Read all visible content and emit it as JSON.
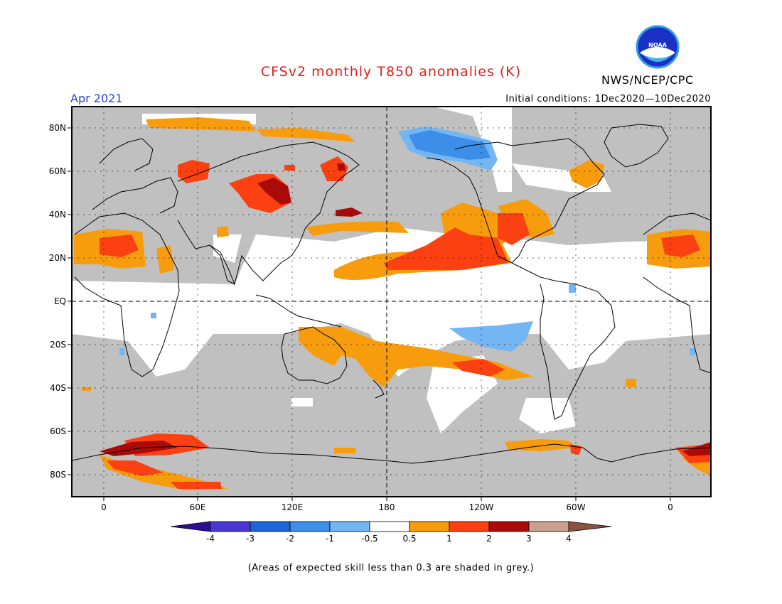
{
  "title": "CFSv2 monthly T850 anomalies (K)",
  "month": "Apr 2021",
  "initial_conditions": "Initial conditions: 1Dec2020—10Dec2020",
  "agency": "NWS/NCEP/CPC",
  "logo_text": "NOAA",
  "footnote": "(Areas of expected skill less than 0.3 are shaded in grey.)",
  "lat_labels": [
    "80N",
    "60N",
    "40N",
    "20N",
    "EQ",
    "20S",
    "40S",
    "60S",
    "80S"
  ],
  "lon_labels": [
    "0",
    "60E",
    "120E",
    "180",
    "120W",
    "60W",
    "0"
  ],
  "colorbar": {
    "ticks": [
      "-4",
      "-3",
      "-2",
      "-1",
      "-0.5",
      "0.5",
      "1",
      "2",
      "3",
      "4"
    ],
    "colors": [
      "#2a0f96",
      "#4a36d0",
      "#1c66d8",
      "#3d8ee9",
      "#74b6f3",
      "#ffffff",
      "#f79c0d",
      "#fb4111",
      "#aa0a0a",
      "#c8a08c",
      "#8a5440"
    ]
  },
  "colors": {
    "skill_grey": "#c0c0c0",
    "coast": "#000000"
  }
}
